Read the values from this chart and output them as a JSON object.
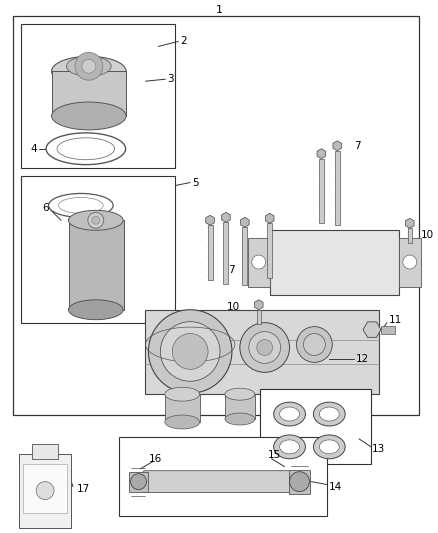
{
  "bg_color": "#ffffff",
  "line_color": "#333333",
  "label_fontsize": 7.5,
  "title_fontsize": 8
}
